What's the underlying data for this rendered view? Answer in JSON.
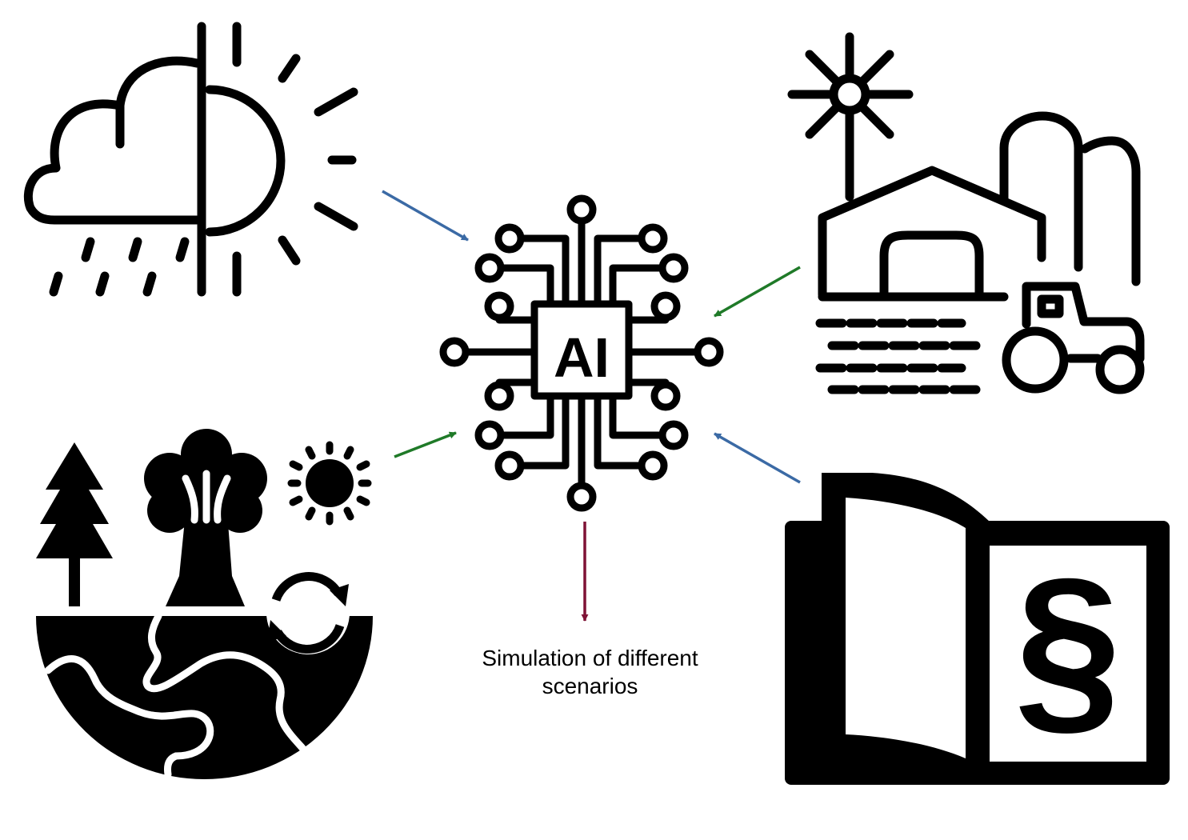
{
  "center": {
    "label": "AI",
    "icon": "ai-chip-icon"
  },
  "inputs": [
    {
      "id": "weather",
      "icon": "weather-cloud-sun-rain-icon"
    },
    {
      "id": "farm",
      "icon": "farm-barn-tractor-icon"
    },
    {
      "id": "environment",
      "icon": "environment-earth-tree-sun-icon"
    },
    {
      "id": "law",
      "icon": "law-book-paragraph-icon"
    }
  ],
  "output": {
    "label_line1": "Simulation of different",
    "label_line2": "scenarios"
  },
  "colors": {
    "blue_arrow": "#3b6aa5",
    "green_arrow": "#1f7a28",
    "maroon_arrow": "#7f1336",
    "icon": "#000000"
  }
}
